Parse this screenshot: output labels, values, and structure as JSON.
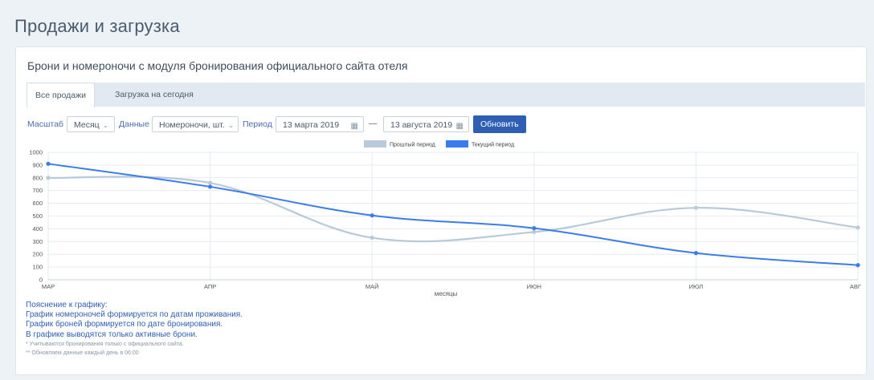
{
  "page": {
    "title": "Продажи и загрузка"
  },
  "panel": {
    "title": "Брони и номероночи с модуля бронирования официального сайта отеля"
  },
  "tabs": [
    {
      "label": "Все продажи",
      "active": true
    },
    {
      "label": "Загрузка на сегодня",
      "active": false
    }
  ],
  "controls": {
    "scale_label": "Масштаб",
    "scale_value": "Месяц",
    "data_label": "Данные",
    "data_value": "Номероночи, шт.",
    "period_label": "Период",
    "date_from": "13 марта 2019",
    "date_sep": "—",
    "date_to": "13 августа 2019",
    "refresh_label": "Обновить"
  },
  "notes": {
    "heading": "Пояснение к графику:",
    "line1": "График номероночей формируется по датам проживания.",
    "line2": "График броней формируется по дате бронирования.",
    "line3": "В графике выводятся только активные брони.",
    "foot1": "* Учитываются бронирования только с официального сайта.",
    "foot2": "** Обновляем данные каждый день в 06:00"
  },
  "chart_data": {
    "type": "line",
    "categories": [
      "МАР",
      "АПР",
      "МАЙ",
      "ИЮН",
      "ИЮЛ",
      "АВГ"
    ],
    "xlabel": "месяцы",
    "ylabel": "",
    "ylim": [
      0,
      1000
    ],
    "yticks": [
      0,
      100,
      200,
      300,
      400,
      500,
      600,
      700,
      800,
      900,
      1000
    ],
    "grid": true,
    "legend_position": "top-center",
    "series": [
      {
        "name": "Прошлый период",
        "color": "#b8cad9",
        "values": [
          800,
          760,
          330,
          375,
          565,
          410
        ]
      },
      {
        "name": "Текущий период",
        "color": "#3a7bf0",
        "values": [
          910,
          730,
          505,
          405,
          210,
          115
        ]
      }
    ]
  }
}
